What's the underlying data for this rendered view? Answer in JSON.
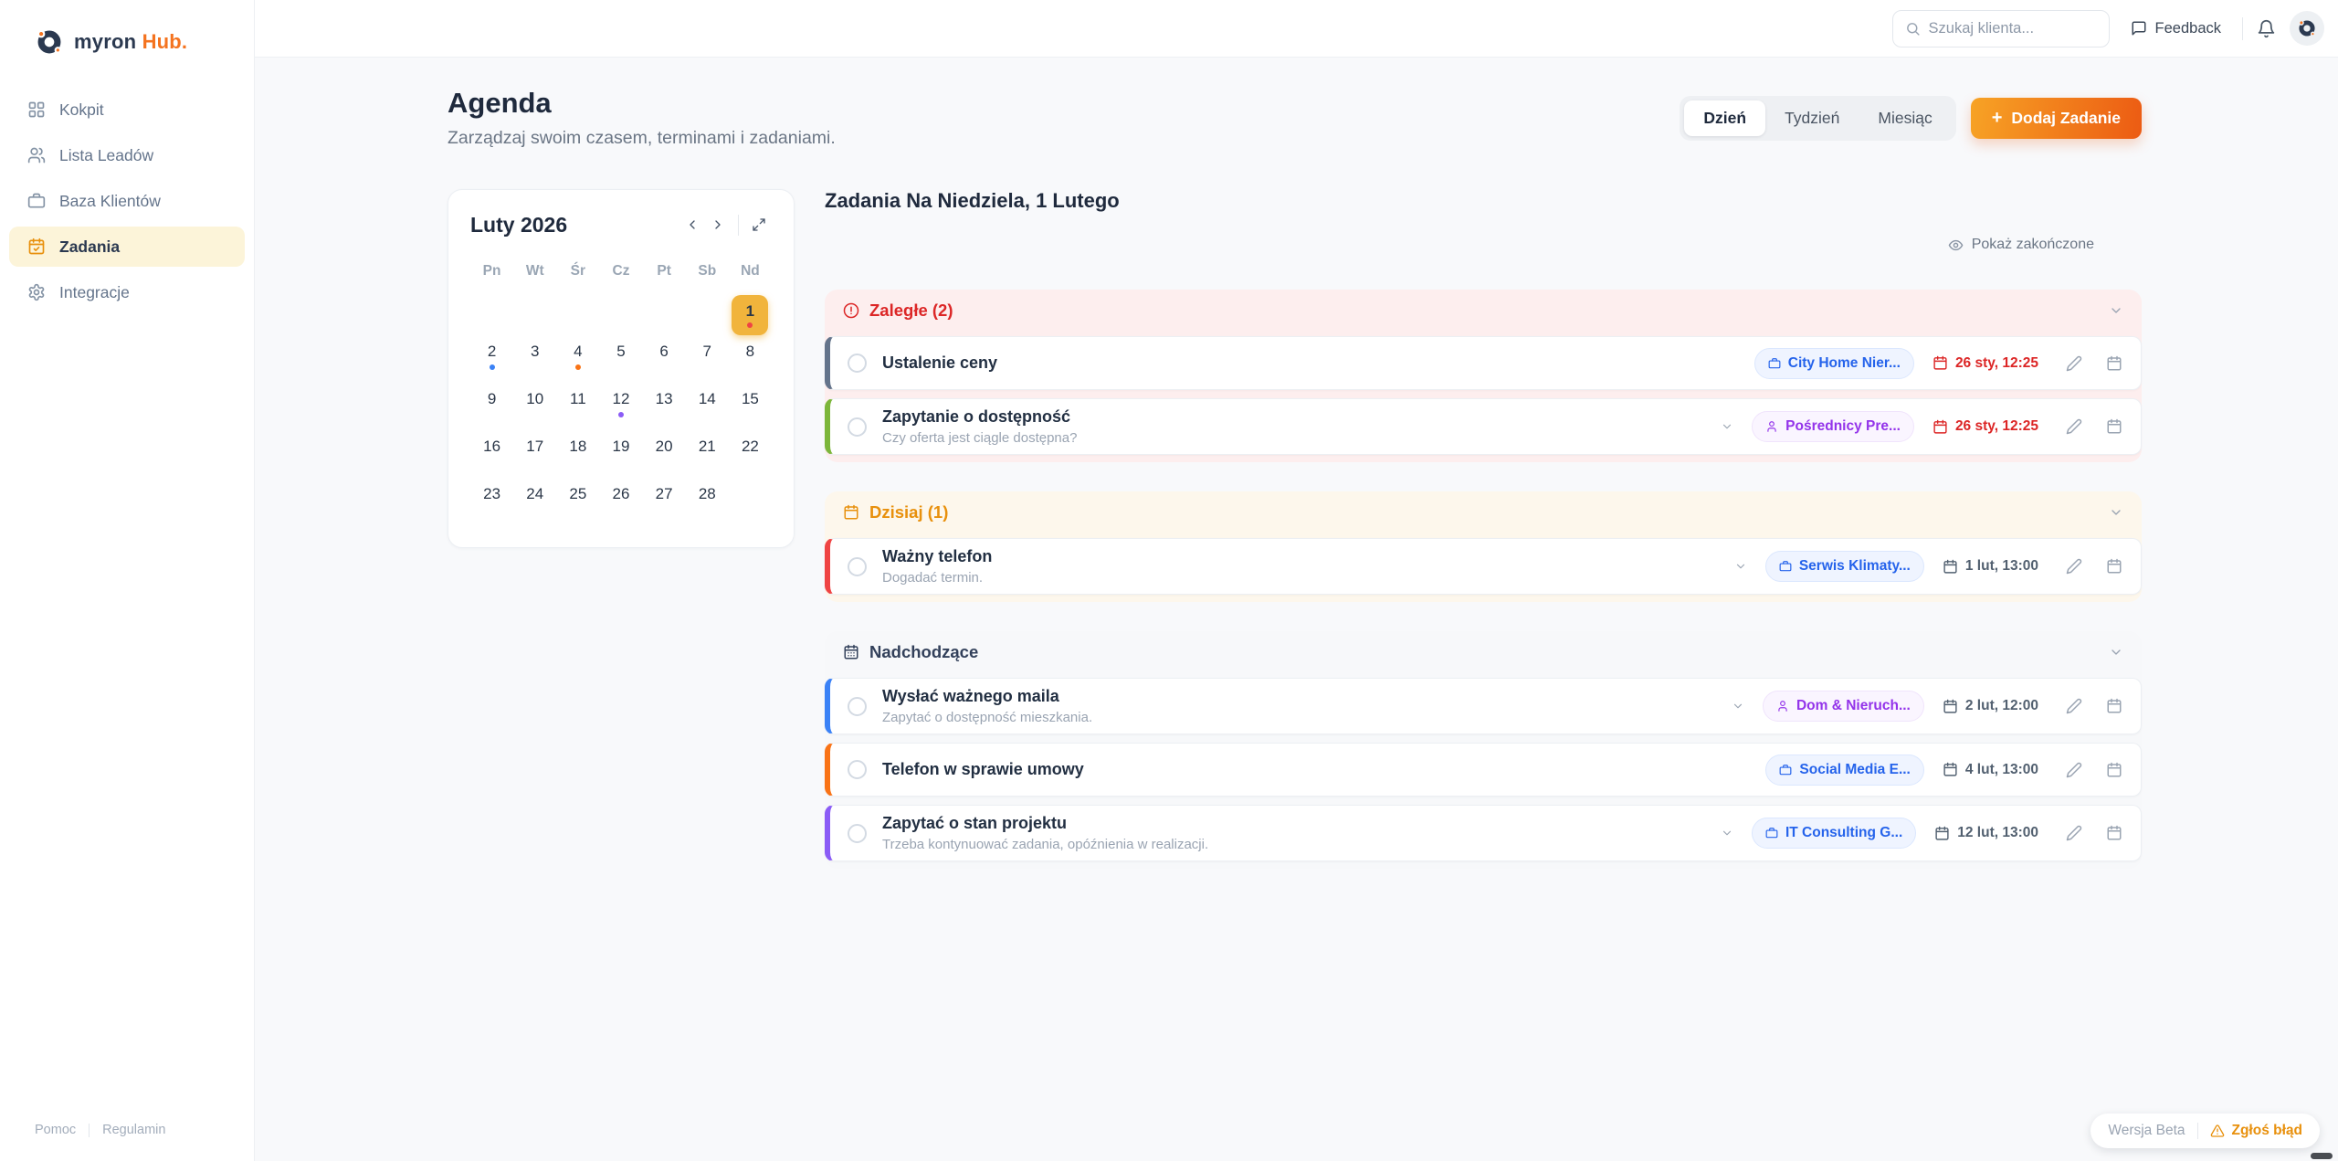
{
  "brand": {
    "logo_text": "myron",
    "logo_suffix": "Hub."
  },
  "sidebar": {
    "items": [
      {
        "label": "Kokpit",
        "icon": "grid",
        "active": false
      },
      {
        "label": "Lista Leadów",
        "icon": "users",
        "active": false
      },
      {
        "label": "Baza Klientów",
        "icon": "briefcase",
        "active": false
      },
      {
        "label": "Zadania",
        "icon": "calendar-check",
        "active": true
      },
      {
        "label": "Integracje",
        "icon": "gear",
        "active": false
      }
    ],
    "footer_links": [
      {
        "label": "Pomoc"
      },
      {
        "label": "Regulamin"
      }
    ]
  },
  "topbar": {
    "search_placeholder": "Szukaj klienta...",
    "feedback_label": "Feedback"
  },
  "page": {
    "title": "Agenda",
    "subtitle": "Zarządzaj swoim czasem, terminami i zadaniami.",
    "tabs": [
      {
        "label": "Dzień",
        "active": true
      },
      {
        "label": "Tydzień",
        "active": false
      },
      {
        "label": "Miesiąc",
        "active": false
      }
    ],
    "add_task_plus": "+",
    "add_task_label": "Dodaj Zadanie"
  },
  "calendar": {
    "month_label": "Luty 2026",
    "weekdays": [
      "Pn",
      "Wt",
      "Śr",
      "Cz",
      "Pt",
      "Sb",
      "Nd"
    ],
    "weeks": [
      [
        null,
        null,
        null,
        null,
        null,
        null,
        1
      ],
      [
        2,
        3,
        4,
        5,
        6,
        7,
        8
      ],
      [
        9,
        10,
        11,
        12,
        13,
        14,
        15
      ],
      [
        16,
        17,
        18,
        19,
        20,
        21,
        22
      ],
      [
        23,
        24,
        25,
        26,
        27,
        28,
        null
      ]
    ],
    "selected_day": 1,
    "selected_bg": "#f1b43c",
    "event_dots": {
      "1": "#ef4444",
      "2": "#3b82f6",
      "4": "#f97316",
      "12": "#8b5cf6"
    }
  },
  "tasks": {
    "heading": "Zadania Na Niedziela, 1 Lutego",
    "show_completed_label": "Pokaż zakończone",
    "sections": [
      {
        "label": "Zaległe (2)",
        "icon": "alert",
        "bg": "#fdeeee",
        "label_color": "#dc2626",
        "items": [
          {
            "title": "Ustalenie ceny",
            "subtitle": "",
            "accent": "#64748b",
            "expandable": false,
            "tag": {
              "label": "City Home Nier...",
              "icon": "briefcase",
              "style": "blue"
            },
            "due": "26 sty, 12:25",
            "overdue": true
          },
          {
            "title": "Zapytanie o dostępność",
            "subtitle": "Czy oferta jest ciągle dostępna?",
            "accent": "#7cb63a",
            "expandable": true,
            "tag": {
              "label": "Pośrednicy Pre...",
              "icon": "user",
              "style": "purple"
            },
            "due": "26 sty, 12:25",
            "overdue": true
          }
        ]
      },
      {
        "label": "Dzisiaj (1)",
        "icon": "calendar",
        "bg": "#fdf7ec",
        "label_color": "#e8900c",
        "items": [
          {
            "title": "Ważny telefon",
            "subtitle": "Dogadać termin.",
            "accent": "#ef4444",
            "expandable": true,
            "tag": {
              "label": "Serwis Klimaty...",
              "icon": "briefcase",
              "style": "blue"
            },
            "due": "1 lut, 13:00",
            "overdue": false
          }
        ]
      },
      {
        "label": "Nadchodzące",
        "icon": "calendar-days",
        "bg": "#f7f8fa",
        "label_color": "#32405a",
        "items": [
          {
            "title": "Wysłać ważnego maila",
            "subtitle": "Zapytać o dostępność mieszkania.",
            "accent": "#3b82f6",
            "expandable": true,
            "tag": {
              "label": "Dom & Nieruch...",
              "icon": "user",
              "style": "purple"
            },
            "due": "2 lut, 12:00",
            "overdue": false
          },
          {
            "title": "Telefon w sprawie umowy",
            "subtitle": "",
            "accent": "#f97316",
            "expandable": false,
            "tag": {
              "label": "Social Media E...",
              "icon": "briefcase",
              "style": "blue"
            },
            "due": "4 lut, 13:00",
            "overdue": false
          },
          {
            "title": "Zapytać o stan projektu",
            "subtitle": "Trzeba kontynuować zadania, opóźnienia w realizacji.",
            "accent": "#8b5cf6",
            "expandable": true,
            "tag": {
              "label": "IT Consulting G...",
              "icon": "briefcase",
              "style": "blue"
            },
            "due": "12 lut, 13:00",
            "overdue": false
          }
        ]
      }
    ]
  },
  "footer": {
    "version_label": "Wersja Beta",
    "report_bug_label": "Zgłoś błąd"
  },
  "colors": {
    "brand_navy": "#2b3950",
    "brand_orange": "#f4731f",
    "overdue_red": "#dc2626",
    "active_nav_bg": "#fcf4d9",
    "selected_day_amber": "#f1b43c"
  }
}
